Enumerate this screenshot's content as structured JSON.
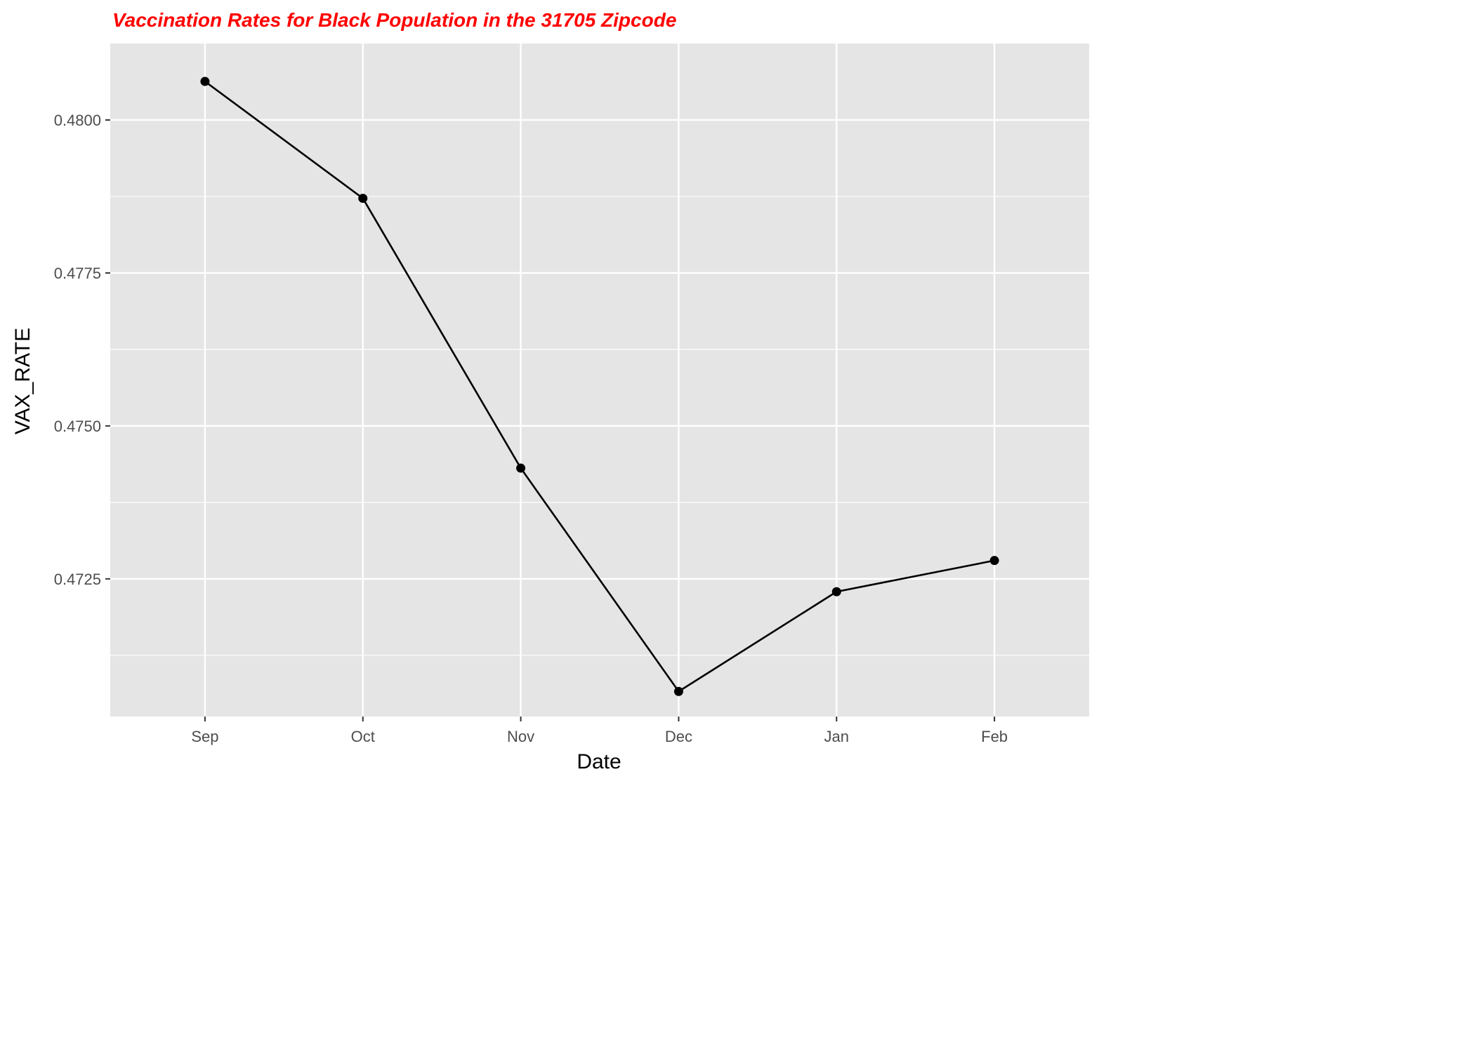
{
  "colors": {
    "panel_background": "#e5e5e5",
    "grid": "#ffffff",
    "line": "#000000",
    "title": "#ff0000",
    "tick_label": "#4d4d4d"
  },
  "chart_data": {
    "type": "line",
    "title": "Vaccination Rates for Black Population in the 31705 Zipcode",
    "xlabel": "Date",
    "ylabel": "VAX_RATE",
    "categories": [
      "Sep",
      "Oct",
      "Nov",
      "Dec",
      "Jan",
      "Feb"
    ],
    "x_range": [
      -0.6,
      5.6
    ],
    "values": [
      0.48063,
      0.47872,
      0.47431,
      0.47066,
      0.47229,
      0.4728
    ],
    "ylim": [
      0.47025,
      0.48125
    ],
    "yticks": [
      0.4725,
      0.475,
      0.4775,
      0.48
    ],
    "ytick_labels": [
      "0.4725",
      "0.4750",
      "0.4775",
      "0.4800"
    ],
    "y_minor_ticks": [
      0.47125,
      0.47375,
      0.47625,
      0.47875
    ],
    "grid": true,
    "legend": "none",
    "markers": true
  }
}
